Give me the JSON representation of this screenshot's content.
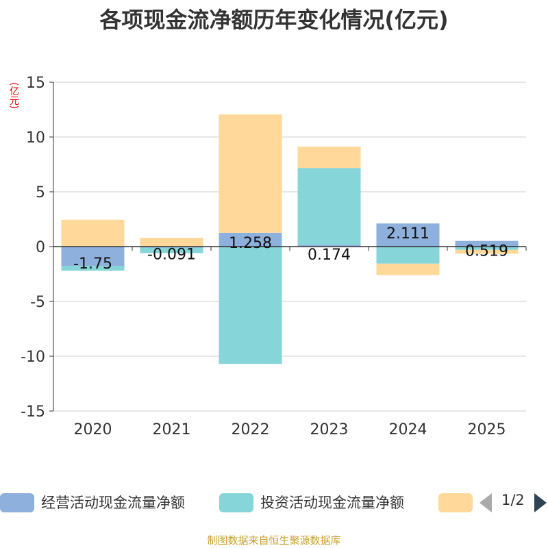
{
  "chart_data": {
    "type": "bar",
    "stacked": true,
    "title": "各项现金流净额历年变化情况(亿元)",
    "ylabel": "(亿元)",
    "xlabel": "",
    "categories": [
      "2020",
      "2021",
      "2022",
      "2023",
      "2024",
      "2025"
    ],
    "ylim": [
      -15,
      15
    ],
    "yticks": [
      15,
      10,
      5,
      0,
      -5,
      -10,
      -15
    ],
    "grid": true,
    "series": [
      {
        "name": "经营活动现金流量净额",
        "color": "#8eb0dc",
        "values": [
          -1.75,
          -0.091,
          1.258,
          0.174,
          2.111,
          0.519
        ]
      },
      {
        "name": "投资活动现金流量净额",
        "color": "#86d5d8",
        "values": [
          -0.45,
          -0.5,
          -10.7,
          7.0,
          -1.55,
          -0.3
        ]
      },
      {
        "name": "",
        "color": "#ffd89a",
        "values": [
          2.45,
          0.8,
          10.8,
          1.95,
          -1.05,
          -0.35
        ]
      }
    ],
    "data_labels": [
      "-1.75",
      "-0.091",
      "1.258",
      "0.174",
      "2.111",
      "0.519"
    ],
    "legend_position": "bottom"
  },
  "legend": {
    "page": "1/2"
  },
  "source": "制图数据来自恒生聚源数据库"
}
